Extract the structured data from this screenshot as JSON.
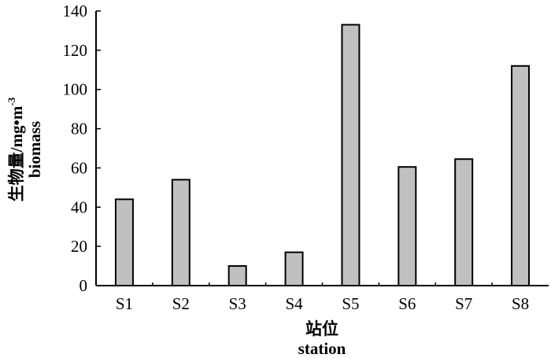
{
  "chart_data": {
    "type": "bar",
    "categories": [
      "S1",
      "S2",
      "S3",
      "S4",
      "S5",
      "S6",
      "S7",
      "S8"
    ],
    "values": [
      44,
      54,
      10,
      17,
      133,
      60.5,
      64.5,
      112
    ],
    "ylim": [
      0,
      140
    ],
    "yticks": [
      0,
      20,
      40,
      60,
      80,
      100,
      120,
      140
    ],
    "ylabel": {
      "line1": "生物量/mg•m",
      "superscript": "-3",
      "line2": "biomass"
    },
    "xlabel": {
      "line1": "站位",
      "line2": "station"
    },
    "grid": false,
    "legend": "none",
    "colors": {
      "bar_fill": "#c0c0c0",
      "bar_stroke": "#000000",
      "axis": "#000000"
    }
  }
}
